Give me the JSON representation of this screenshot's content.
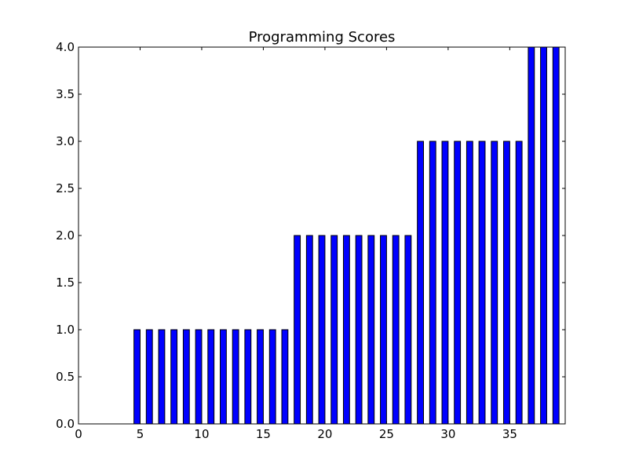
{
  "chart_data": {
    "type": "bar",
    "title": "Programming Scores",
    "xlabel": "",
    "ylabel": "",
    "x": [
      0,
      1,
      2,
      3,
      4,
      5,
      6,
      7,
      8,
      9,
      10,
      11,
      12,
      13,
      14,
      15,
      16,
      17,
      18,
      19,
      20,
      21,
      22,
      23,
      24,
      25,
      26,
      27,
      28,
      29,
      30,
      31,
      32,
      33,
      34,
      35,
      36,
      37,
      38
    ],
    "values": [
      0,
      0,
      0,
      0,
      1,
      1,
      1,
      1,
      1,
      1,
      1,
      1,
      1,
      1,
      1,
      1,
      1,
      2,
      2,
      2,
      2,
      2,
      2,
      2,
      2,
      2,
      2,
      3,
      3,
      3,
      3,
      3,
      3,
      3,
      3,
      3,
      4,
      4,
      4
    ],
    "bar_width": 0.5,
    "xlim": [
      0,
      39.5
    ],
    "ylim": [
      0,
      4.0
    ],
    "xticks": [
      0,
      5,
      10,
      15,
      20,
      25,
      30,
      35
    ],
    "xtick_labels": [
      "0",
      "5",
      "10",
      "15",
      "20",
      "25",
      "30",
      "35"
    ],
    "yticks": [
      0,
      0.5,
      1.0,
      1.5,
      2.0,
      2.5,
      3.0,
      3.5,
      4.0
    ],
    "ytick_labels": [
      "0.0",
      "0.5",
      "1.0",
      "1.5",
      "2.0",
      "2.5",
      "3.0",
      "3.5",
      "4.0"
    ],
    "grid": false,
    "colors": {
      "bar_fill": "#0000ff",
      "bar_edge": "#000000",
      "axes_edge": "#000000",
      "background": "#ffffff"
    }
  }
}
